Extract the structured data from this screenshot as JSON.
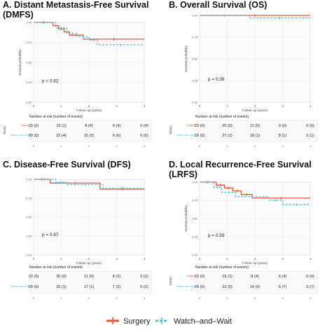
{
  "legend": {
    "items": [
      {
        "name": "Surgery",
        "color": "#e6553a"
      },
      {
        "name": "Watch–and–Wait",
        "color": "#4fc6d6"
      }
    ]
  },
  "chart_data": [
    {
      "type": "line",
      "title_lines": [
        "A. Distant Metastasis-Free Survival",
        "(DMFS)"
      ],
      "ylabel": "Survival probability",
      "xlabel": "Follow–up (years)",
      "xlim": [
        0,
        4
      ],
      "ylim": [
        0,
        1
      ],
      "yticks": [
        "0.00",
        "0.25",
        "0.50",
        "0.75",
        "1.00"
      ],
      "xticks": [
        "0",
        "1",
        "2",
        "3",
        "4"
      ],
      "pvalue": "p = 0.82",
      "series": [
        {
          "name": "Surgery",
          "color": "#e6553a",
          "dash": false,
          "x": [
            0,
            0.7,
            0.7,
            0.9,
            0.9,
            1.1,
            1.1,
            1.3,
            1.3,
            1.8,
            1.8,
            4
          ],
          "y": [
            1,
            1,
            0.96,
            0.96,
            0.92,
            0.92,
            0.88,
            0.88,
            0.84,
            0.84,
            0.79,
            0.79
          ]
        },
        {
          "name": "Watch–and–Wait",
          "color": "#4fc6d6",
          "dash": true,
          "x": [
            0,
            0.8,
            0.8,
            1.2,
            1.2,
            1.6,
            1.6,
            2.0,
            2.0,
            2.3,
            2.3,
            4
          ],
          "y": [
            1,
            1,
            0.93,
            0.93,
            0.86,
            0.86,
            0.82,
            0.82,
            0.78,
            0.78,
            0.72,
            0.72
          ]
        }
      ],
      "risk_table": {
        "header": "Number at risk (number of events)",
        "strata_label": "Strata",
        "rows": [
          {
            "label": "Surgery",
            "color": "#e6553a",
            "cells": [
              "23 (0)",
              "19 (1)",
              "8 (4)",
              "6 (4)",
              "0 (4)"
            ]
          },
          {
            "label": "Watch–and–Wait",
            "color": "#4fc6d6",
            "cells": [
              "29 (0)",
              "23 (4)",
              "15 (5)",
              "6 (6)",
              "0 (6)"
            ]
          }
        ],
        "xticks": [
          "0",
          "1",
          "2",
          "3",
          "4"
        ]
      }
    },
    {
      "type": "line",
      "title_lines": [
        "B. Overall Survival (OS)"
      ],
      "ylabel": "Survival probability",
      "xlabel": "Follow–up (years)",
      "xlim": [
        0,
        4
      ],
      "ylim": [
        0,
        1
      ],
      "yticks": [
        "0.00",
        "0.25",
        "0.50",
        "0.75",
        "1.00"
      ],
      "xticks": [
        "0",
        "1",
        "2",
        "3",
        "4"
      ],
      "pvalue": "p = 0.38",
      "series": [
        {
          "name": "Surgery",
          "color": "#e6553a",
          "dash": false,
          "x": [
            0,
            4
          ],
          "y": [
            1,
            1
          ]
        },
        {
          "name": "Watch–and–Wait",
          "color": "#4fc6d6",
          "dash": true,
          "x": [
            0,
            1.8,
            1.8,
            4
          ],
          "y": [
            1,
            1,
            0.97,
            0.97
          ]
        }
      ],
      "risk_table": {
        "header": "Number at risk (number of events)",
        "strata_label": "Strata",
        "rows": [
          {
            "label": "Surgery",
            "color": "#e6553a",
            "cells": [
              "23 (0)",
              "20 (0)",
              "11 (0)",
              "9 (0)",
              "0 (0)"
            ]
          },
          {
            "label": "Watch–and–Wait",
            "color": "#4fc6d6",
            "cells": [
              "29 (0)",
              "27 (1)",
              "18 (1)",
              "8 (1)",
              "0 (1)"
            ]
          }
        ],
        "xticks": [
          "0",
          "1",
          "2",
          "3",
          "4"
        ]
      }
    },
    {
      "type": "line",
      "title_lines": [
        "C. Disease-Free Survival (DFS)"
      ],
      "ylabel": "",
      "xlabel": "Follow–up (years)",
      "xlim": [
        0,
        4
      ],
      "ylim": [
        0,
        1
      ],
      "yticks": [
        "0.00",
        "0.25",
        "0.50",
        "0.75",
        "1.00"
      ],
      "xticks": [
        "0",
        "1",
        "2",
        "3",
        "4"
      ],
      "pvalue": "p = 0.87",
      "series": [
        {
          "name": "Surgery",
          "color": "#e6553a",
          "dash": false,
          "x": [
            0,
            0.6,
            0.6,
            2.4,
            2.4,
            4
          ],
          "y": [
            1,
            1,
            0.95,
            0.95,
            0.87,
            0.87
          ]
        },
        {
          "name": "Watch–and–Wait",
          "color": "#4fc6d6",
          "dash": true,
          "x": [
            0,
            0.8,
            0.8,
            1.2,
            1.2,
            2.5,
            2.5,
            4
          ],
          "y": [
            1,
            1,
            0.96,
            0.96,
            0.93,
            0.93,
            0.88,
            0.88
          ]
        }
      ],
      "risk_table": {
        "header": "Number at risk (number of events)",
        "strata_label": "",
        "rows": [
          {
            "label": "",
            "color": "#e6553a",
            "cells": [
              "23 (0)",
              "20 (0)",
              "11 (0)",
              "8 (2)",
              "0 (2)"
            ]
          },
          {
            "label": "Watch–and–Wait",
            "color": "#4fc6d6",
            "cells": [
              "29 (0)",
              "26 (1)",
              "17 (1)",
              "7 (2)",
              "0 (2)"
            ]
          }
        ],
        "xticks": [
          "0",
          "1",
          "2",
          "3",
          "4"
        ]
      }
    },
    {
      "type": "line",
      "title_lines": [
        "D. Local Recurrence-Free Survival",
        "(LRFS)"
      ],
      "ylabel": "Survival probability",
      "xlabel": "Follow–up (years)",
      "xlim": [
        0,
        4
      ],
      "ylim": [
        0,
        1
      ],
      "yticks": [
        "0.00",
        "0.25",
        "0.50",
        "0.75",
        "1.00"
      ],
      "xticks": [
        "0",
        "1",
        "2",
        "3",
        "4"
      ],
      "pvalue": "p = 0.59",
      "series": [
        {
          "name": "Surgery",
          "color": "#e6553a",
          "dash": false,
          "x": [
            0,
            0.6,
            0.6,
            0.9,
            0.9,
            1.2,
            1.2,
            1.5,
            1.5,
            1.9,
            1.9,
            4
          ],
          "y": [
            1,
            1,
            0.96,
            0.96,
            0.92,
            0.92,
            0.88,
            0.88,
            0.83,
            0.83,
            0.78,
            0.78
          ]
        },
        {
          "name": "Watch–and–Wait",
          "color": "#4fc6d6",
          "dash": true,
          "x": [
            0,
            0.5,
            0.5,
            0.8,
            0.8,
            1.3,
            1.3,
            2.5,
            2.5,
            3.0,
            3.0,
            4
          ],
          "y": [
            1,
            1,
            0.93,
            0.93,
            0.86,
            0.86,
            0.8,
            0.8,
            0.75,
            0.75,
            0.69,
            0.69
          ]
        }
      ],
      "risk_table": {
        "header": "Number at risk (number of events)",
        "strata_label": "Strata",
        "rows": [
          {
            "label": "Surgery",
            "color": "#e6553a",
            "cells": [
              "23 (0)",
              "19 (1)",
              "8 (4)",
              "6 (4)",
              "0 (4)"
            ]
          },
          {
            "label": "Watch–and–Wait",
            "color": "#4fc6d6",
            "cells": [
              "29 (0)",
              "22 (5)",
              "14 (6)",
              "6 (7)",
              "0 (7)"
            ]
          }
        ],
        "xticks": [
          "0",
          "1",
          "2",
          "3",
          "4"
        ]
      }
    }
  ]
}
